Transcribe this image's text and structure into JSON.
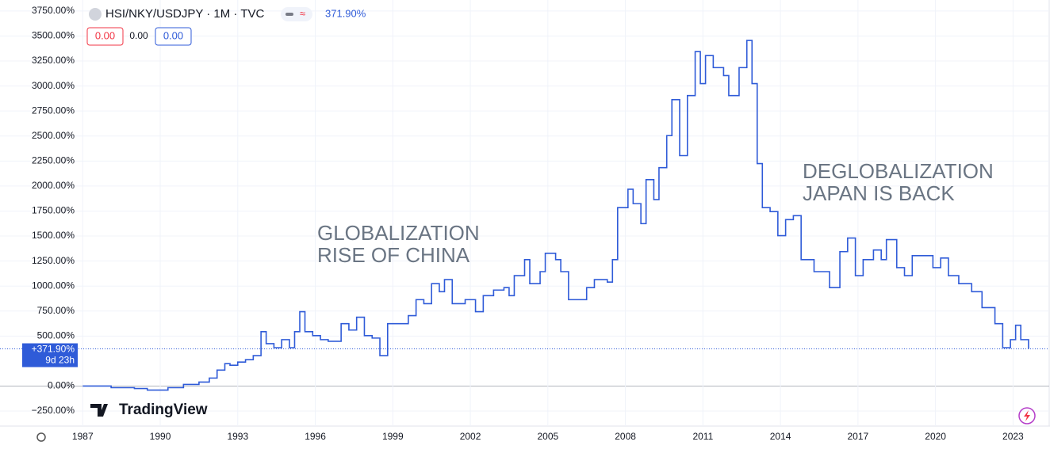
{
  "chart_data": {
    "type": "line",
    "step": true,
    "symbol": "HSI/NKY/USDJPY · 1M · TVC",
    "header_value": "371.90%",
    "change_buttons": [
      "0.00",
      "0.00",
      "0.00"
    ],
    "last_label": "+371.90%",
    "countdown": "9d 23h",
    "brand": "TradingView",
    "annotations": [
      {
        "lines": [
          "GLOBALIZATION",
          "RISE OF CHINA"
        ]
      },
      {
        "lines": [
          "DEGLOBALIZATION",
          "JAPAN IS BACK"
        ]
      }
    ],
    "grid": true,
    "color": "#2f5bd8",
    "xlim": [
      1983.8,
      2024.4
    ],
    "xticks": [
      1987,
      1990,
      1993,
      1996,
      1999,
      2002,
      2005,
      2008,
      2011,
      2014,
      2017,
      2020,
      2023
    ],
    "ylim": [
      -400,
      3860
    ],
    "yticks": [
      {
        "value": -250,
        "label": "−250.00%"
      },
      {
        "value": 0,
        "label": "0.00%"
      },
      {
        "value": 500,
        "label": "500.00%"
      },
      {
        "value": 750,
        "label": "750.00%"
      },
      {
        "value": 1000,
        "label": "1000.00%"
      },
      {
        "value": 1250,
        "label": "1250.00%"
      },
      {
        "value": 1500,
        "label": "1500.00%"
      },
      {
        "value": 1750,
        "label": "1750.00%"
      },
      {
        "value": 2000,
        "label": "2000.00%"
      },
      {
        "value": 2250,
        "label": "2250.00%"
      },
      {
        "value": 2500,
        "label": "2500.00%"
      },
      {
        "value": 2750,
        "label": "2750.00%"
      },
      {
        "value": 3000,
        "label": "3000.00%"
      },
      {
        "value": 3250,
        "label": "3250.00%"
      },
      {
        "value": 3500,
        "label": "3500.00%"
      },
      {
        "value": 3750,
        "label": "3750.00%"
      }
    ],
    "last_value": 371.9,
    "x": [
      1987.0,
      1987.8,
      1988.1,
      1989.0,
      1989.5,
      1989.8,
      1990.3,
      1990.9,
      1991.5,
      1991.9,
      1992.2,
      1992.5,
      1992.7,
      1993.0,
      1993.3,
      1993.6,
      1993.9,
      1994.1,
      1994.4,
      1994.7,
      1995.0,
      1995.2,
      1995.4,
      1995.6,
      1995.9,
      1996.2,
      1996.5,
      1997.0,
      1997.3,
      1997.6,
      1997.9,
      1998.2,
      1998.5,
      1998.8,
      1999.1,
      1999.6,
      1999.9,
      2000.2,
      2000.5,
      2000.8,
      2001.0,
      2001.3,
      2001.8,
      2002.2,
      2002.5,
      2002.9,
      2003.3,
      2003.5,
      2003.7,
      2004.1,
      2004.3,
      2004.7,
      2004.9,
      2005.3,
      2005.5,
      2005.8,
      2006.2,
      2006.5,
      2006.8,
      2007.3,
      2007.5,
      2007.7,
      2008.1,
      2008.3,
      2008.6,
      2008.8,
      2009.1,
      2009.3,
      2009.6,
      2009.8,
      2010.1,
      2010.4,
      2010.7,
      2010.9,
      2011.1,
      2011.4,
      2011.8,
      2012.0,
      2012.4,
      2012.7,
      2012.9,
      2013.1,
      2013.3,
      2013.6,
      2013.9,
      2014.2,
      2014.5,
      2014.8,
      2015.3,
      2015.9,
      2016.3,
      2016.6,
      2016.9,
      2017.2,
      2017.6,
      2017.9,
      2018.1,
      2018.5,
      2018.8,
      2019.1,
      2019.5,
      2019.9,
      2020.2,
      2020.5,
      2020.9,
      2021.4,
      2021.8,
      2022.3,
      2022.6,
      2022.9,
      2023.1,
      2023.3,
      2023.6
    ],
    "values": [
      0,
      0,
      -16,
      -24,
      -40,
      -40,
      -16,
      16,
      40,
      80,
      160,
      224,
      208,
      240,
      264,
      304,
      544,
      424,
      384,
      464,
      384,
      544,
      744,
      544,
      504,
      464,
      448,
      624,
      560,
      688,
      504,
      480,
      304,
      624,
      624,
      704,
      864,
      824,
      1024,
      944,
      1064,
      824,
      864,
      744,
      904,
      960,
      984,
      904,
      1104,
      1264,
      1024,
      1144,
      1328,
      1264,
      1144,
      864,
      864,
      984,
      1064,
      1040,
      1264,
      1784,
      1968,
      1824,
      1624,
      2064,
      1864,
      2184,
      2504,
      2864,
      2304,
      2904,
      3344,
      3024,
      3304,
      3184,
      3104,
      2904,
      3184,
      3456,
      3024,
      2224,
      1784,
      1744,
      1504,
      1664,
      1704,
      1264,
      1144,
      984,
      1344,
      1480,
      1104,
      1264,
      1360,
      1264,
      1464,
      1184,
      1104,
      1304,
      1304,
      1184,
      1280,
      1104,
      1024,
      944,
      784,
      624,
      384,
      464,
      608,
      464,
      371.9
    ]
  }
}
